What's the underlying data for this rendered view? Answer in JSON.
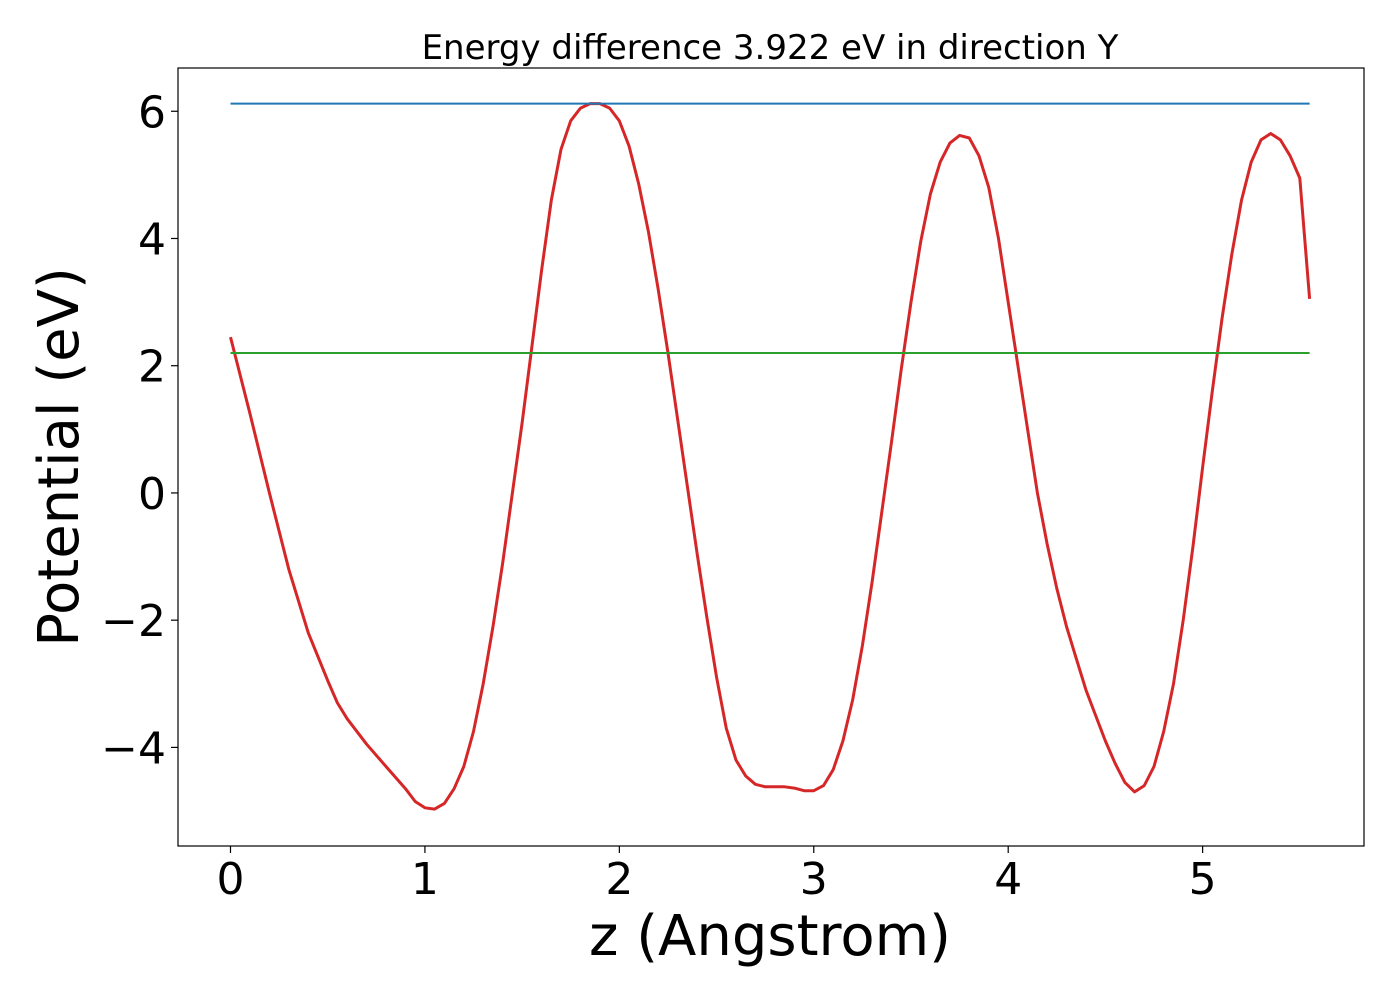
{
  "chart_data": {
    "type": "line",
    "title": "Energy difference 3.922 eV in direction Y",
    "xlabel": "z (Angstrom)",
    "ylabel": "Potential (eV)",
    "xlim": [
      -0.27,
      5.83
    ],
    "ylim": [
      -5.55,
      6.68
    ],
    "xticks": [
      0,
      1,
      2,
      3,
      4,
      5
    ],
    "yticks": [
      6,
      4,
      2,
      0,
      -2,
      -4
    ],
    "xtick_labels": [
      "0",
      "1",
      "2",
      "3",
      "4",
      "5"
    ],
    "ytick_labels": [
      "6",
      "4",
      "2",
      "0",
      "−2",
      "−4"
    ],
    "grid": false,
    "series": [
      {
        "color": "#d62728",
        "x": [
          0.0,
          0.1,
          0.2,
          0.3,
          0.4,
          0.5,
          0.55,
          0.6,
          0.7,
          0.8,
          0.9,
          0.95,
          1.0,
          1.05,
          1.1,
          1.15,
          1.2,
          1.25,
          1.3,
          1.35,
          1.4,
          1.45,
          1.5,
          1.55,
          1.6,
          1.65,
          1.7,
          1.75,
          1.8,
          1.85,
          1.9,
          1.95,
          2.0,
          2.05,
          2.1,
          2.15,
          2.2,
          2.25,
          2.3,
          2.35,
          2.4,
          2.45,
          2.5,
          2.55,
          2.6,
          2.65,
          2.7,
          2.75,
          2.8,
          2.85,
          2.9,
          2.95,
          3.0,
          3.05,
          3.1,
          3.15,
          3.2,
          3.25,
          3.3,
          3.35,
          3.4,
          3.45,
          3.5,
          3.55,
          3.6,
          3.65,
          3.7,
          3.75,
          3.8,
          3.85,
          3.9,
          3.95,
          4.0,
          4.05,
          4.1,
          4.15,
          4.2,
          4.25,
          4.3,
          4.35,
          4.4,
          4.45,
          4.5,
          4.55,
          4.6,
          4.65,
          4.7,
          4.75,
          4.8,
          4.85,
          4.9,
          4.95,
          5.0,
          5.05,
          5.1,
          5.15,
          5.2,
          5.25,
          5.3,
          5.35,
          5.4,
          5.45,
          5.5,
          5.55
        ],
        "y": [
          2.45,
          1.25,
          0.0,
          -1.2,
          -2.2,
          -2.95,
          -3.3,
          -3.55,
          -3.95,
          -4.3,
          -4.65,
          -4.85,
          -4.95,
          -4.97,
          -4.88,
          -4.65,
          -4.3,
          -3.75,
          -3.0,
          -2.1,
          -1.1,
          0.0,
          1.1,
          2.3,
          3.5,
          4.6,
          5.4,
          5.85,
          6.05,
          6.12,
          6.12,
          6.05,
          5.85,
          5.45,
          4.85,
          4.1,
          3.2,
          2.2,
          1.15,
          0.1,
          -0.95,
          -1.95,
          -2.9,
          -3.7,
          -4.2,
          -4.45,
          -4.58,
          -4.62,
          -4.62,
          -4.62,
          -4.64,
          -4.68,
          -4.68,
          -4.6,
          -4.35,
          -3.9,
          -3.25,
          -2.4,
          -1.4,
          -0.3,
          0.8,
          1.95,
          3.0,
          3.95,
          4.7,
          5.2,
          5.5,
          5.62,
          5.58,
          5.3,
          4.8,
          4.0,
          3.0,
          2.0,
          1.0,
          0.0,
          -0.8,
          -1.5,
          -2.1,
          -2.6,
          -3.1,
          -3.5,
          -3.9,
          -4.25,
          -4.55,
          -4.7,
          -4.6,
          -4.3,
          -3.75,
          -3.0,
          -2.0,
          -0.85,
          0.4,
          1.6,
          2.75,
          3.75,
          4.6,
          5.2,
          5.55,
          5.65,
          5.55,
          5.3,
          4.95,
          3.05
        ]
      },
      {
        "color": "#1f77b4",
        "x": [
          0.0,
          5.55
        ],
        "y": [
          6.12,
          6.12
        ]
      },
      {
        "color": "#2ca02c",
        "x": [
          0.0,
          5.55
        ],
        "y": [
          2.2,
          2.2
        ]
      }
    ]
  }
}
